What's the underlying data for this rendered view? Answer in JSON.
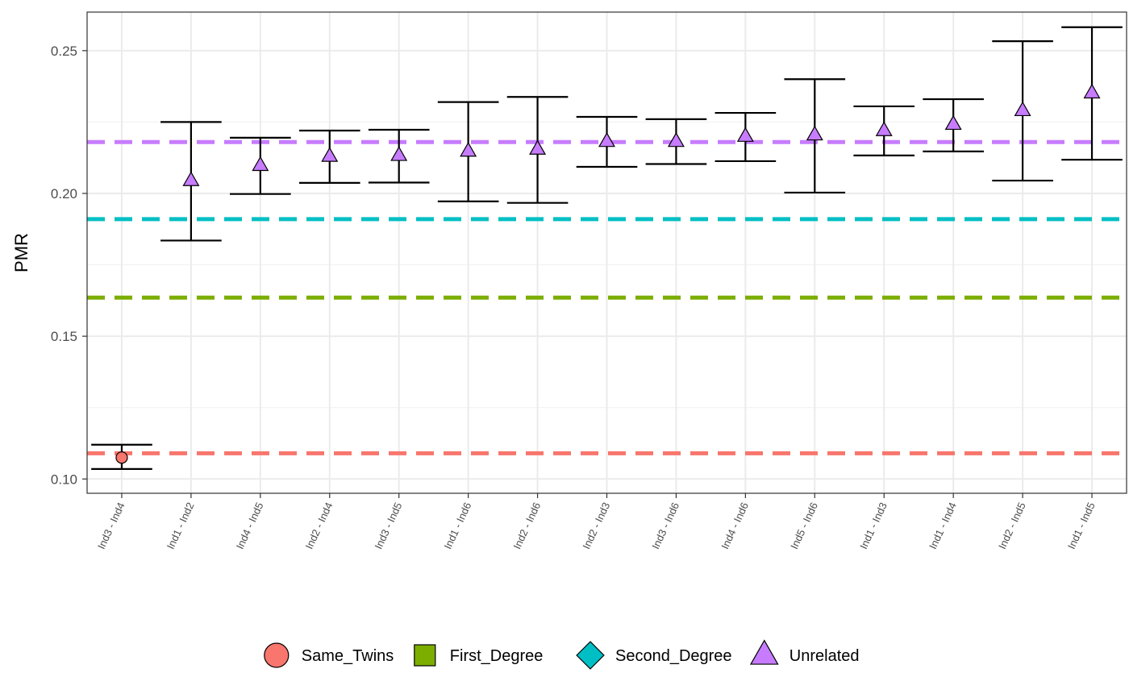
{
  "chart_data": {
    "type": "scatter",
    "title": "",
    "xlabel": "",
    "ylabel": "PMR",
    "ylim": [
      0.095,
      0.2635
    ],
    "yticks": [
      0.1,
      0.15,
      0.2,
      0.25
    ],
    "ytick_labels": [
      "0.10",
      "0.15",
      "0.20",
      "0.25"
    ],
    "grid": true,
    "legend_position": "bottom",
    "categories": [
      "Ind3 - Ind4",
      "Ind1 - Ind2",
      "Ind4 - Ind5",
      "Ind2 - Ind4",
      "Ind3 - Ind5",
      "Ind1 - Ind6",
      "Ind2 - Ind6",
      "Ind2 - Ind3",
      "Ind3 - Ind6",
      "Ind4 - Ind6",
      "Ind5 - Ind6",
      "Ind1 - Ind3",
      "Ind1 - Ind4",
      "Ind2 - Ind5",
      "Ind1 - Ind5"
    ],
    "points": [
      {
        "x": "Ind3 - Ind4",
        "y": 0.1075,
        "lower": 0.1035,
        "upper": 0.112,
        "group": "Same_Twins"
      },
      {
        "x": "Ind1 - Ind2",
        "y": 0.2045,
        "lower": 0.1835,
        "upper": 0.225,
        "group": "Unrelated"
      },
      {
        "x": "Ind4 - Ind5",
        "y": 0.2098,
        "lower": 0.1998,
        "upper": 0.2195,
        "group": "Unrelated"
      },
      {
        "x": "Ind2 - Ind4",
        "y": 0.213,
        "lower": 0.2037,
        "upper": 0.222,
        "group": "Unrelated"
      },
      {
        "x": "Ind3 - Ind5",
        "y": 0.2133,
        "lower": 0.2038,
        "upper": 0.2223,
        "group": "Unrelated"
      },
      {
        "x": "Ind1 - Ind6",
        "y": 0.2148,
        "lower": 0.1972,
        "upper": 0.232,
        "group": "Unrelated"
      },
      {
        "x": "Ind2 - Ind6",
        "y": 0.2155,
        "lower": 0.1967,
        "upper": 0.2338,
        "group": "Unrelated"
      },
      {
        "x": "Ind2 - Ind3",
        "y": 0.2182,
        "lower": 0.2093,
        "upper": 0.2268,
        "group": "Unrelated"
      },
      {
        "x": "Ind3 - Ind6",
        "y": 0.2182,
        "lower": 0.2103,
        "upper": 0.226,
        "group": "Unrelated"
      },
      {
        "x": "Ind4 - Ind6",
        "y": 0.22,
        "lower": 0.2113,
        "upper": 0.2282,
        "group": "Unrelated"
      },
      {
        "x": "Ind5 - Ind6",
        "y": 0.2205,
        "lower": 0.2003,
        "upper": 0.24,
        "group": "Unrelated"
      },
      {
        "x": "Ind1 - Ind3",
        "y": 0.222,
        "lower": 0.2133,
        "upper": 0.2305,
        "group": "Unrelated"
      },
      {
        "x": "Ind1 - Ind4",
        "y": 0.2242,
        "lower": 0.2147,
        "upper": 0.233,
        "group": "Unrelated"
      },
      {
        "x": "Ind2 - Ind5",
        "y": 0.229,
        "lower": 0.2045,
        "upper": 0.2533,
        "group": "Unrelated"
      },
      {
        "x": "Ind1 - Ind5",
        "y": 0.2352,
        "lower": 0.2118,
        "upper": 0.2582,
        "group": "Unrelated"
      }
    ],
    "reference_lines": [
      {
        "group": "Same_Twins",
        "y": 0.109
      },
      {
        "group": "First_Degree",
        "y": 0.1635
      },
      {
        "group": "Second_Degree",
        "y": 0.191
      },
      {
        "group": "Unrelated",
        "y": 0.218
      }
    ],
    "legend": [
      {
        "label": "Same_Twins",
        "shape": "circle",
        "color": "#F8766D"
      },
      {
        "label": "First_Degree",
        "shape": "square",
        "color": "#7CAE00"
      },
      {
        "label": "Second_Degree",
        "shape": "diamond",
        "color": "#00BFC4"
      },
      {
        "label": "Unrelated",
        "shape": "triangle",
        "color": "#C77CFF"
      }
    ]
  }
}
